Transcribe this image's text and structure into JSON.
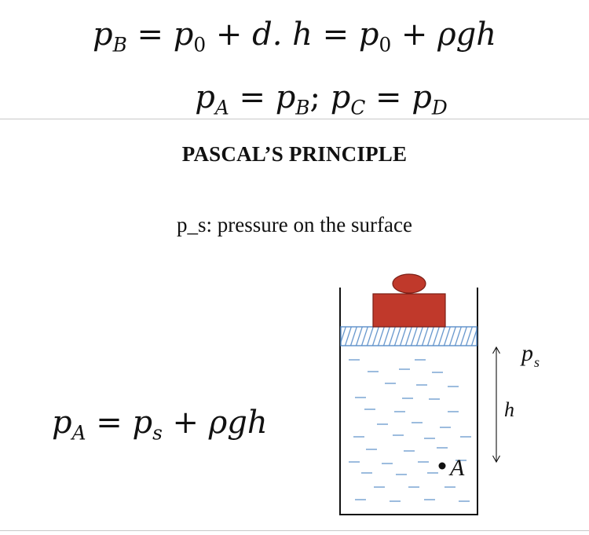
{
  "equations": {
    "line1": {
      "pB": "p",
      "pB_sub": "B",
      "eq1": " = ",
      "p0a": "p",
      "p0a_sub": "0",
      "mid": " + d. h = ",
      "p0b": "p",
      "p0b_sub": "0",
      "tail": " + ρgh"
    },
    "line2": {
      "pA": "p",
      "pA_sub": "A",
      "eq1": " = ",
      "pB": "p",
      "pB_sub": "B",
      "sep": "; ",
      "pC": "p",
      "pC_sub": "C",
      "eq2": " = ",
      "pD": "p",
      "pD_sub": "D"
    },
    "line3": {
      "pA": "p",
      "pA_sub": "A",
      "eq1": " = ",
      "ps": "p",
      "ps_sub": "s",
      "tail": " + ρgh"
    }
  },
  "heading": "PASCAL’S PRINCIPLE",
  "subtitle": "p_s: pressure on the surface",
  "diagram": {
    "label_ps": "p",
    "label_ps_sub": "s",
    "label_h": "h",
    "label_A": "A",
    "colors": {
      "weight": "#c0392b",
      "weight_edge": "#7a1f16",
      "piston_hatch": "#5b8fc9",
      "liquid_dash": "#5b8fc9",
      "container": "#111111"
    }
  }
}
